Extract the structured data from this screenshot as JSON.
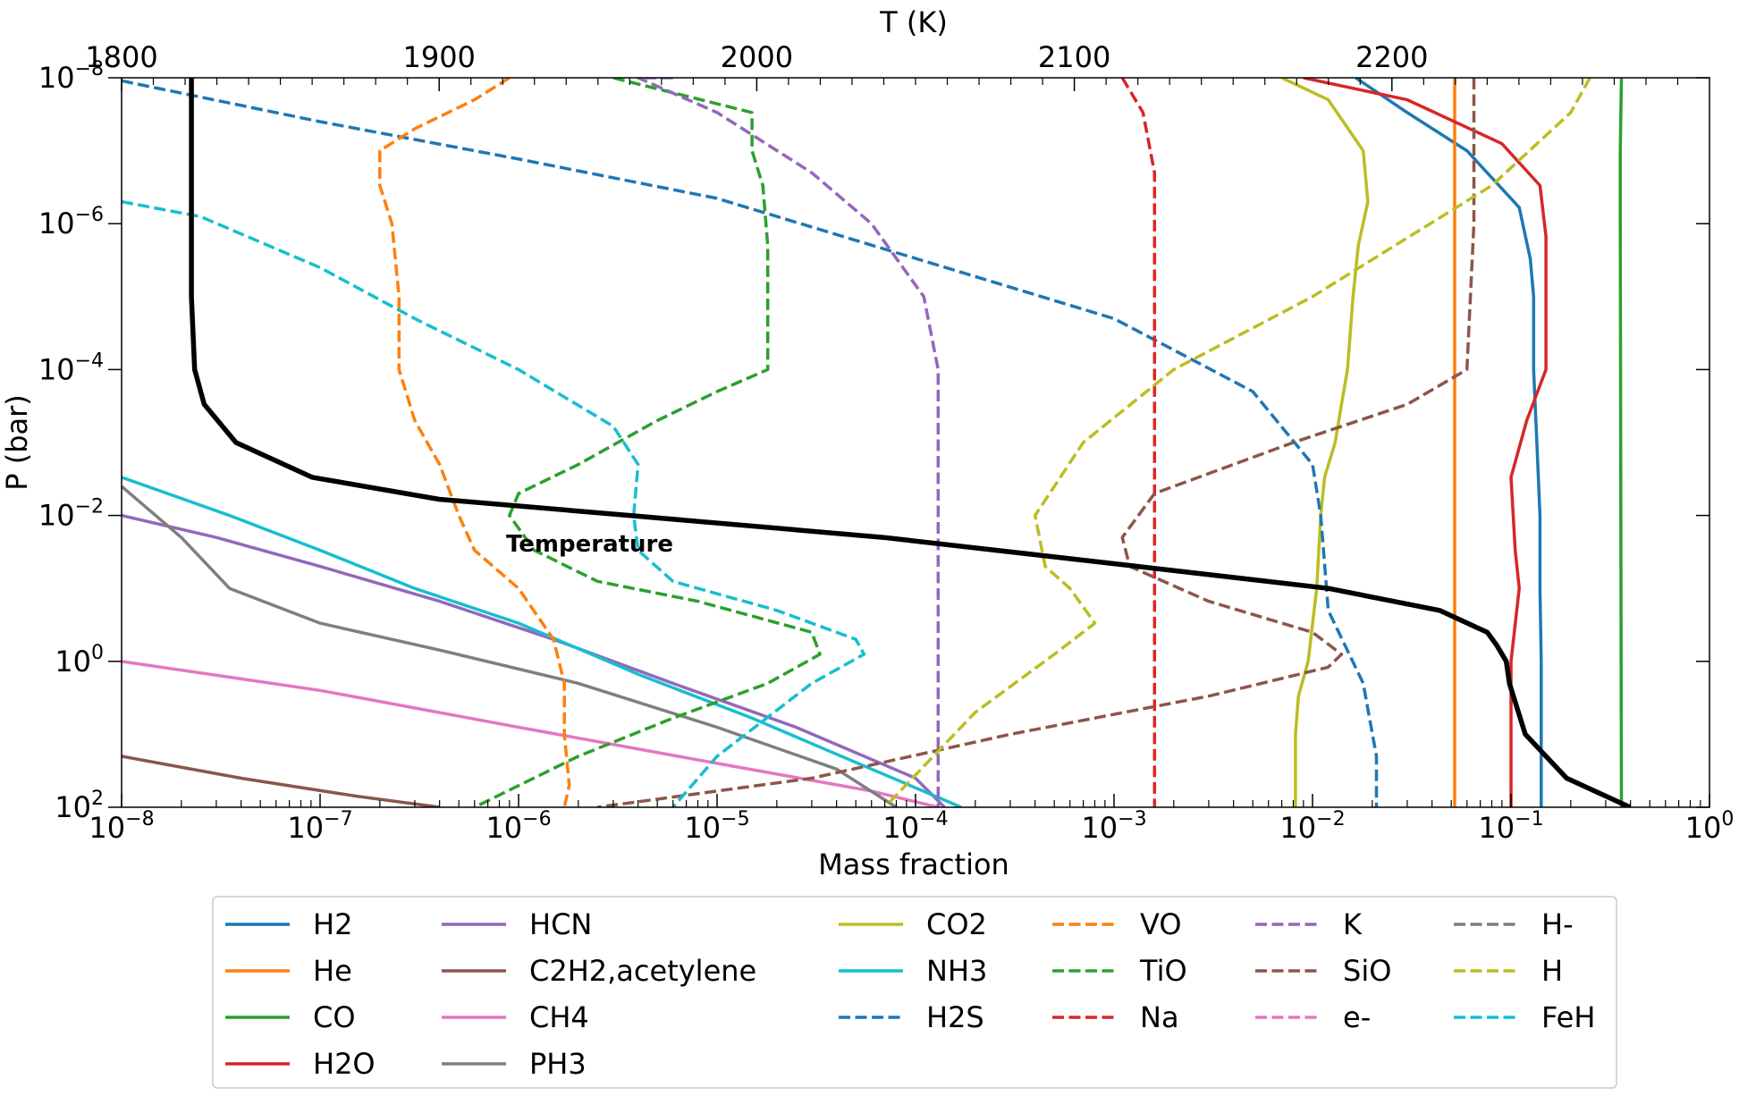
{
  "chart_data": {
    "type": "line",
    "x_axis": {
      "label": "Mass fraction",
      "scale": "log",
      "range": [
        1e-08,
        1
      ],
      "ticks": [
        {
          "value": 1e-08,
          "base": "10",
          "exp": "−8"
        },
        {
          "value": 1e-07,
          "base": "10",
          "exp": "−7"
        },
        {
          "value": 1e-06,
          "base": "10",
          "exp": "−6"
        },
        {
          "value": 1e-05,
          "base": "10",
          "exp": "−5"
        },
        {
          "value": 0.0001,
          "base": "10",
          "exp": "−4"
        },
        {
          "value": 0.001,
          "base": "10",
          "exp": "−3"
        },
        {
          "value": 0.01,
          "base": "10",
          "exp": "−2"
        },
        {
          "value": 0.1,
          "base": "10",
          "exp": "−1"
        },
        {
          "value": 1,
          "base": "10",
          "exp": "0"
        }
      ]
    },
    "y_axis": {
      "label": "P (bar)",
      "scale": "log",
      "inverted": true,
      "range": [
        1e-08,
        100
      ],
      "ticks": [
        {
          "value": 1e-08,
          "base": "10",
          "exp": "−8"
        },
        {
          "value": 1e-06,
          "base": "10",
          "exp": "−6"
        },
        {
          "value": 0.0001,
          "base": "10",
          "exp": "−4"
        },
        {
          "value": 0.01,
          "base": "10",
          "exp": "−2"
        },
        {
          "value": 1,
          "base": "10",
          "exp": "0"
        },
        {
          "value": 100,
          "base": "10",
          "exp": "2"
        }
      ]
    },
    "top_axis": {
      "label": "T (K)",
      "scale": "linear",
      "range": [
        1800,
        2300
      ],
      "ticks": [
        "1800",
        "1900",
        "2000",
        "2100",
        "2200"
      ]
    },
    "annotation": "Temperature",
    "temperature": {
      "T": [
        1822,
        1822,
        1822,
        1823,
        1826,
        1836,
        1860,
        1900,
        1960,
        2040,
        2120,
        2180,
        2215,
        2230,
        2233,
        2236,
        2237,
        2242,
        2255,
        2275
      ],
      "P": [
        1e-08,
        1e-06,
        1e-05,
        0.0001,
        0.0003,
        0.001,
        0.003,
        0.006,
        0.01,
        0.02,
        0.05,
        0.1,
        0.2,
        0.4,
        0.6,
        1.0,
        2.0,
        10,
        40,
        100
      ]
    },
    "series": [
      {
        "name": "H2",
        "color": "#1f77b4",
        "dash": false,
        "x": [
          0.0165,
          0.03,
          0.06,
          0.11,
          0.125,
          0.13,
          0.13,
          0.135,
          0.14,
          0.14,
          0.142,
          0.142
        ],
        "y": [
          1e-08,
          3e-08,
          1e-07,
          6e-07,
          3e-06,
          1e-05,
          0.0001,
          0.001,
          0.01,
          0.1,
          1,
          100
        ]
      },
      {
        "name": "He",
        "color": "#ff7f0e",
        "dash": false,
        "x": [
          0.052,
          0.052
        ],
        "y": [
          1e-08,
          100
        ]
      },
      {
        "name": "CO",
        "color": "#2ca02c",
        "dash": false,
        "x": [
          0.36,
          0.355,
          0.355,
          0.36
        ],
        "y": [
          1e-08,
          1e-07,
          1e-06,
          100
        ]
      },
      {
        "name": "H2O",
        "color": "#d62728",
        "dash": false,
        "x": [
          0.009,
          0.03,
          0.09,
          0.14,
          0.15,
          0.15,
          0.12,
          0.1,
          0.105,
          0.11,
          0.1,
          0.1,
          0.1
        ],
        "y": [
          1e-08,
          2e-08,
          8e-08,
          3e-07,
          1.5e-06,
          0.0001,
          0.0005,
          0.003,
          0.03,
          0.1,
          1,
          10,
          100
        ]
      },
      {
        "name": "HCN",
        "color": "#9467bd",
        "dash": false,
        "x": [
          1e-08,
          3e-08,
          1e-07,
          4e-07,
          1.5e-06,
          6e-06,
          2.5e-05,
          0.0001,
          0.00014
        ],
        "y": [
          0.01,
          0.02,
          0.05,
          0.15,
          0.5,
          2,
          8,
          40,
          100
        ]
      },
      {
        "name": "C2H2,acetylene",
        "color": "#8c564b",
        "dash": false,
        "x": [
          1e-08,
          4e-08,
          1.5e-07,
          4e-07
        ],
        "y": [
          20,
          40,
          70,
          100
        ]
      },
      {
        "name": "CH4",
        "color": "#e377c2",
        "dash": false,
        "x": [
          1e-08,
          1e-07,
          1e-06,
          1e-05,
          6e-05,
          0.00013
        ],
        "y": [
          1,
          2.5,
          8,
          25,
          60,
          100
        ]
      },
      {
        "name": "PH3",
        "color": "#7f7f7f",
        "dash": false,
        "x": [
          1e-08,
          2e-08,
          3.5e-08,
          1e-07,
          4e-07,
          2e-06,
          1e-05,
          4e-05,
          8e-05
        ],
        "y": [
          0.004,
          0.02,
          0.1,
          0.3,
          0.7,
          2,
          8,
          30,
          100
        ]
      },
      {
        "name": "CO2",
        "color": "#bcbd22",
        "dash": false,
        "x": [
          0.007,
          0.012,
          0.018,
          0.019,
          0.017,
          0.016,
          0.015,
          0.014,
          0.013,
          0.0115,
          0.011,
          0.0105,
          0.0095,
          0.0085,
          0.0082,
          0.0082
        ],
        "y": [
          1e-08,
          2e-08,
          1e-07,
          5e-07,
          2e-06,
          1e-05,
          0.0001,
          0.0003,
          0.001,
          0.003,
          0.01,
          0.1,
          1,
          3,
          10,
          100
        ]
      },
      {
        "name": "NH3",
        "color": "#17becf",
        "dash": false,
        "x": [
          1e-08,
          3.5e-08,
          1e-07,
          3e-07,
          1e-06,
          4e-06,
          1.5e-05,
          6e-05,
          0.00017
        ],
        "y": [
          0.003,
          0.01,
          0.03,
          0.1,
          0.3,
          1.5,
          6,
          30,
          100
        ]
      },
      {
        "name": "H2S",
        "color": "#1f77b4",
        "dash": true,
        "x": [
          1e-08,
          1e-07,
          1e-06,
          1e-05,
          0.0001,
          0.001,
          0.005,
          0.01,
          0.011,
          0.012,
          0.018,
          0.021,
          0.021
        ],
        "y": [
          1.1e-08,
          4e-08,
          1.3e-07,
          4.5e-07,
          3e-06,
          2e-05,
          0.0002,
          0.002,
          0.01,
          0.2,
          2,
          20,
          100
        ]
      },
      {
        "name": "VO",
        "color": "#ff7f0e",
        "dash": true,
        "x": [
          9e-07,
          6e-07,
          3e-07,
          2e-07,
          2e-07,
          2.3e-07,
          2.5e-07,
          2.5e-07,
          3e-07,
          4e-07,
          5e-07,
          6e-07,
          1e-06,
          1.5e-06,
          1.7e-06,
          1.7e-06,
          1.8e-06,
          1.7e-06
        ],
        "y": [
          1e-08,
          2e-08,
          5e-08,
          1e-07,
          3e-07,
          1e-06,
          1e-05,
          0.0001,
          0.0005,
          0.002,
          0.01,
          0.03,
          0.1,
          0.5,
          2,
          10,
          50,
          100
        ]
      },
      {
        "name": "TiO",
        "color": "#2ca02c",
        "dash": true,
        "x": [
          3e-06,
          1.5e-05,
          1.5e-05,
          1.7e-05,
          1.8e-05,
          1.8e-05,
          1e-05,
          5e-06,
          2e-06,
          1e-06,
          9e-07,
          1.2e-06,
          2.5e-06,
          8e-06,
          3e-05,
          3.3e-05,
          1.8e-05,
          6e-06,
          2e-06,
          6e-07
        ],
        "y": [
          1e-08,
          3e-08,
          1e-07,
          3e-07,
          2e-06,
          0.0001,
          0.0002,
          0.0005,
          0.002,
          0.005,
          0.01,
          0.03,
          0.08,
          0.15,
          0.4,
          0.8,
          2,
          6,
          20,
          100
        ]
      },
      {
        "name": "Na",
        "color": "#d62728",
        "dash": true,
        "x": [
          0.0011,
          0.0014,
          0.0016,
          0.0016,
          0.0016
        ],
        "y": [
          1e-08,
          3e-08,
          2e-07,
          1e-06,
          100
        ]
      },
      {
        "name": "K",
        "color": "#9467bd",
        "dash": true,
        "x": [
          6e-06,
          4e-06,
          1e-05,
          3e-05,
          6e-05,
          0.00011,
          0.00013,
          0.00013
        ],
        "y": [
          1e-08,
          1e-08,
          3e-08,
          2e-07,
          1e-06,
          1e-05,
          0.0001,
          100
        ]
      },
      {
        "name": "SiO",
        "color": "#8c564b",
        "dash": true,
        "x": [
          0.065,
          0.065,
          0.06,
          0.03,
          0.008,
          0.0016,
          0.0011,
          0.0012,
          0.003,
          0.01,
          0.014,
          0.012,
          0.003,
          0.0003,
          3e-05,
          2.5e-06
        ],
        "y": [
          1e-08,
          1e-06,
          0.0001,
          0.0003,
          0.001,
          0.005,
          0.02,
          0.05,
          0.15,
          0.4,
          0.8,
          1.2,
          3,
          10,
          40,
          100
        ]
      },
      {
        "name": "e-",
        "color": "#e377c2",
        "dash": true,
        "x": [],
        "y": []
      },
      {
        "name": "H-",
        "color": "#7f7f7f",
        "dash": true,
        "x": [],
        "y": []
      },
      {
        "name": "H",
        "color": "#bcbd22",
        "dash": true,
        "x": [
          0.25,
          0.2,
          0.08,
          0.01,
          0.002,
          0.0007,
          0.0004,
          0.00045,
          0.0006,
          0.0008,
          0.0005,
          0.0002,
          7e-05
        ],
        "y": [
          1e-08,
          3e-08,
          3e-07,
          1e-05,
          0.0001,
          0.001,
          0.01,
          0.05,
          0.1,
          0.3,
          0.8,
          5,
          100
        ]
      },
      {
        "name": "FeH",
        "color": "#17becf",
        "dash": true,
        "x": [
          1e-08,
          2.5e-08,
          1e-07,
          3e-07,
          1e-06,
          3e-06,
          4e-06,
          3.8e-06,
          4e-06,
          6e-06,
          2e-05,
          5e-05,
          5.5e-05,
          3e-05,
          1e-05,
          6e-06
        ],
        "y": [
          5e-07,
          8e-07,
          4e-06,
          2e-05,
          0.0001,
          0.0006,
          0.002,
          0.01,
          0.03,
          0.08,
          0.2,
          0.5,
          0.8,
          2,
          20,
          100
        ]
      }
    ],
    "legend": {
      "placement": "bottom-center",
      "columns": [
        [
          "H2",
          "He",
          "CO",
          "H2O"
        ],
        [
          "HCN",
          "C2H2,acetylene",
          "CH4",
          "PH3"
        ],
        [
          "CO2",
          "NH3",
          "H2S"
        ],
        [
          "VO",
          "TiO",
          "Na"
        ],
        [
          "K",
          "SiO",
          "e-"
        ],
        [
          "H-",
          "H",
          "FeH"
        ]
      ]
    }
  }
}
